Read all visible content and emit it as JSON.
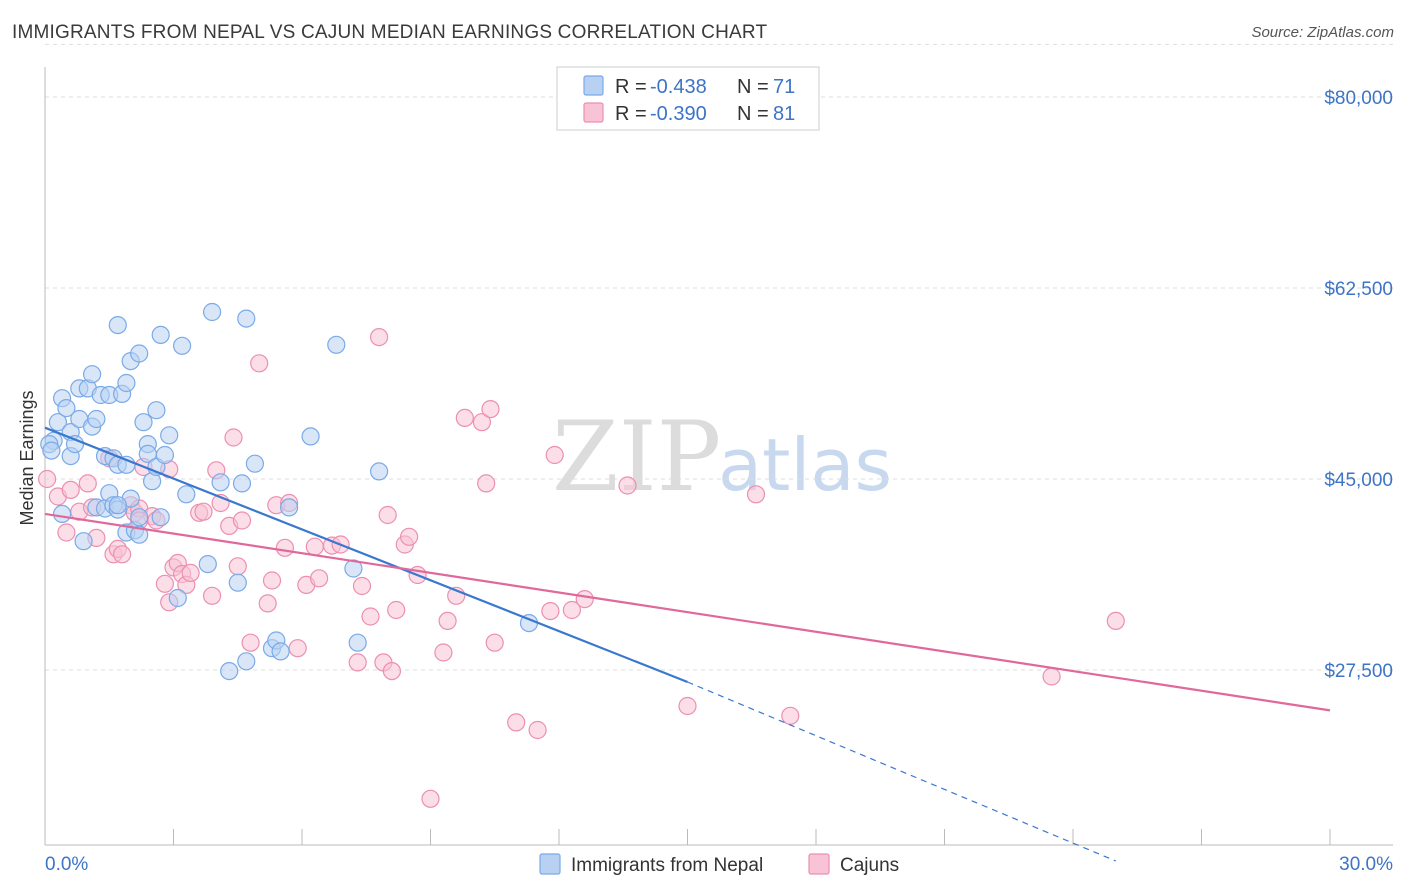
{
  "header": {
    "title": "IMMIGRANTS FROM NEPAL VS CAJUN MEDIAN EARNINGS CORRELATION CHART",
    "source": "Source: ZipAtlas.com"
  },
  "watermark": {
    "part1": "ZIP",
    "part2": "atlas"
  },
  "legend": {
    "rows": [
      {
        "r_label": "R = ",
        "r_value": "-0.438",
        "n_label": "N = ",
        "n_value": "71"
      },
      {
        "r_label": "R = ",
        "r_value": "-0.390",
        "n_label": "N = ",
        "n_value": "81"
      }
    ]
  },
  "chart_data": {
    "type": "scatter",
    "title": "IMMIGRANTS FROM NEPAL VS CAJUN MEDIAN EARNINGS CORRELATION CHART",
    "xlabel": "",
    "ylabel": "Median Earnings",
    "xlim": [
      0,
      30
    ],
    "ylim": [
      10000,
      85000
    ],
    "x_tick_labels": [
      "0.0%",
      "30.0%"
    ],
    "y_ticks": [
      27500,
      45000,
      62500,
      80000
    ],
    "y_tick_labels": [
      "$27,500",
      "$45,000",
      "$62,500",
      "$80,000"
    ],
    "grid": true,
    "legend_position": "top-center",
    "series": [
      {
        "name": "Immigrants from Nepal",
        "color": "#7aaae8",
        "fill": "#b8d1f3",
        "trend": {
          "x0": 0.0,
          "y0": 49700,
          "x1": 15.0,
          "y1": 26400,
          "dash_x_end": 25.0,
          "dash_y_end": 10000
        },
        "points": [
          [
            0.2,
            48500
          ],
          [
            0.3,
            50200
          ],
          [
            0.4,
            52400
          ],
          [
            0.5,
            51500
          ],
          [
            0.6,
            49300
          ],
          [
            0.6,
            47100
          ],
          [
            0.7,
            48200
          ],
          [
            0.8,
            53300
          ],
          [
            0.8,
            50500
          ],
          [
            0.9,
            39300
          ],
          [
            1.0,
            53300
          ],
          [
            1.1,
            54600
          ],
          [
            1.1,
            49800
          ],
          [
            1.2,
            50500
          ],
          [
            1.2,
            42400
          ],
          [
            1.3,
            52700
          ],
          [
            1.4,
            47100
          ],
          [
            1.4,
            42300
          ],
          [
            1.5,
            52700
          ],
          [
            1.5,
            43700
          ],
          [
            1.6,
            46900
          ],
          [
            1.6,
            42600
          ],
          [
            1.7,
            42200
          ],
          [
            1.7,
            46300
          ],
          [
            1.7,
            59100
          ],
          [
            1.8,
            52800
          ],
          [
            1.9,
            53800
          ],
          [
            1.9,
            46300
          ],
          [
            1.9,
            40100
          ],
          [
            2.0,
            55800
          ],
          [
            2.0,
            43200
          ],
          [
            2.1,
            40300
          ],
          [
            2.2,
            56500
          ],
          [
            2.2,
            39900
          ],
          [
            2.2,
            41500
          ],
          [
            2.3,
            50200
          ],
          [
            2.4,
            48200
          ],
          [
            2.4,
            47300
          ],
          [
            2.5,
            44800
          ],
          [
            2.6,
            51300
          ],
          [
            2.6,
            46100
          ],
          [
            2.7,
            41500
          ],
          [
            2.7,
            58200
          ],
          [
            2.8,
            47200
          ],
          [
            2.9,
            49000
          ],
          [
            3.1,
            34100
          ],
          [
            3.2,
            57200
          ],
          [
            3.3,
            43600
          ],
          [
            3.8,
            37200
          ],
          [
            3.9,
            60300
          ],
          [
            4.1,
            44700
          ],
          [
            4.3,
            27400
          ],
          [
            4.5,
            35500
          ],
          [
            4.6,
            44600
          ],
          [
            4.7,
            59700
          ],
          [
            4.7,
            28300
          ],
          [
            4.9,
            46400
          ],
          [
            5.3,
            29500
          ],
          [
            5.4,
            30200
          ],
          [
            5.5,
            29200
          ],
          [
            5.7,
            42400
          ],
          [
            6.2,
            48900
          ],
          [
            6.8,
            57300
          ],
          [
            7.2,
            36800
          ],
          [
            7.3,
            30000
          ],
          [
            7.8,
            45700
          ],
          [
            11.3,
            31800
          ],
          [
            0.1,
            48200
          ],
          [
            0.15,
            47600
          ],
          [
            0.4,
            41800
          ],
          [
            1.7,
            42600
          ]
        ]
      },
      {
        "name": "Cajuns",
        "color": "#ec8fb0",
        "fill": "#f8c3d6",
        "trend": {
          "x0": 0.0,
          "y0": 41800,
          "x1": 30.0,
          "y1": 23800
        },
        "points": [
          [
            0.05,
            45000
          ],
          [
            0.3,
            43400
          ],
          [
            0.5,
            40100
          ],
          [
            0.6,
            44000
          ],
          [
            0.8,
            42000
          ],
          [
            1.0,
            44600
          ],
          [
            1.1,
            42400
          ],
          [
            1.2,
            39600
          ],
          [
            1.5,
            46900
          ],
          [
            1.6,
            38100
          ],
          [
            1.7,
            38600
          ],
          [
            1.8,
            38100
          ],
          [
            2.0,
            42600
          ],
          [
            2.1,
            41900
          ],
          [
            2.2,
            42300
          ],
          [
            2.3,
            46100
          ],
          [
            2.5,
            41600
          ],
          [
            2.6,
            41200
          ],
          [
            2.8,
            35400
          ],
          [
            2.9,
            33700
          ],
          [
            3.0,
            36900
          ],
          [
            3.1,
            37300
          ],
          [
            3.2,
            36300
          ],
          [
            3.3,
            35300
          ],
          [
            3.4,
            36400
          ],
          [
            3.6,
            41900
          ],
          [
            3.7,
            42000
          ],
          [
            3.9,
            34300
          ],
          [
            4.0,
            45800
          ],
          [
            4.1,
            42800
          ],
          [
            4.3,
            40700
          ],
          [
            4.4,
            48800
          ],
          [
            4.5,
            37000
          ],
          [
            4.6,
            41200
          ],
          [
            4.8,
            30000
          ],
          [
            5.0,
            55600
          ],
          [
            5.2,
            33600
          ],
          [
            5.3,
            35700
          ],
          [
            5.4,
            42600
          ],
          [
            5.6,
            38700
          ],
          [
            5.7,
            42800
          ],
          [
            5.9,
            29500
          ],
          [
            6.1,
            35300
          ],
          [
            6.4,
            35900
          ],
          [
            6.7,
            38900
          ],
          [
            6.9,
            39000
          ],
          [
            7.3,
            28200
          ],
          [
            7.4,
            35200
          ],
          [
            7.6,
            32400
          ],
          [
            7.8,
            58000
          ],
          [
            7.9,
            28200
          ],
          [
            8.0,
            41700
          ],
          [
            8.1,
            27400
          ],
          [
            8.2,
            33000
          ],
          [
            8.4,
            39000
          ],
          [
            8.5,
            39700
          ],
          [
            8.7,
            36200
          ],
          [
            9.0,
            15700
          ],
          [
            9.3,
            29100
          ],
          [
            9.4,
            32000
          ],
          [
            9.6,
            34300
          ],
          [
            9.8,
            50600
          ],
          [
            10.2,
            50200
          ],
          [
            10.3,
            44600
          ],
          [
            10.4,
            51400
          ],
          [
            10.5,
            30000
          ],
          [
            11.0,
            22700
          ],
          [
            11.5,
            22000
          ],
          [
            11.8,
            32900
          ],
          [
            11.9,
            47200
          ],
          [
            12.3,
            33000
          ],
          [
            12.6,
            34000
          ],
          [
            13.6,
            44400
          ],
          [
            15.0,
            24200
          ],
          [
            16.6,
            43600
          ],
          [
            17.4,
            23300
          ],
          [
            23.5,
            26900
          ],
          [
            25.0,
            32000
          ],
          [
            2.2,
            41200
          ],
          [
            2.9,
            45900
          ],
          [
            6.3,
            38800
          ]
        ]
      }
    ]
  }
}
